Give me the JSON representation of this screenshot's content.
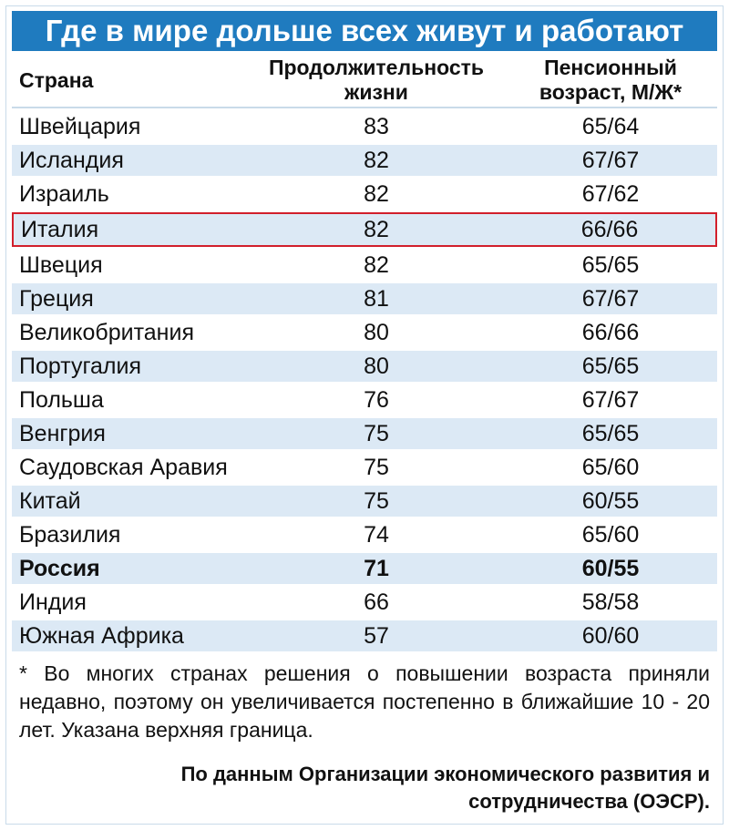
{
  "header": {
    "title": "Где в мире дольше всех живут и работают"
  },
  "table": {
    "columns": [
      "Страна",
      "Продолжительность жизни",
      "Пенсионный возраст, М/Ж*"
    ],
    "rows": [
      [
        "Швейцария",
        83,
        "65/64"
      ],
      [
        "Исландия",
        82,
        "67/67"
      ],
      [
        "Израиль",
        82,
        "67/62"
      ],
      [
        "Италия",
        82,
        "66/66"
      ],
      [
        "Швеция",
        82,
        "65/65"
      ],
      [
        "Греция",
        81,
        "67/67"
      ],
      [
        "Великобритания",
        80,
        "66/66"
      ],
      [
        "Португалия",
        80,
        "65/65"
      ],
      [
        "Польша",
        76,
        "67/67"
      ],
      [
        "Венгрия",
        75,
        "65/65"
      ],
      [
        "Саудовская Аравия",
        75,
        "65/60"
      ],
      [
        "Китай",
        75,
        "60/55"
      ],
      [
        "Бразилия",
        74,
        "65/60"
      ],
      [
        "Россия",
        71,
        "60/55"
      ],
      [
        "Индия",
        66,
        "58/58"
      ],
      [
        "Южная Африка",
        57,
        "60/60"
      ]
    ]
  },
  "footnote": "* Во многих странах решения о повышении возраста приняли недавно, поэтому он увеличивается постепенно в ближайшие 10 - 20 лет. Указана верхняя граница.",
  "source": "По данным Организации экономического развития и сотрудничества (ОЭСР)."
}
